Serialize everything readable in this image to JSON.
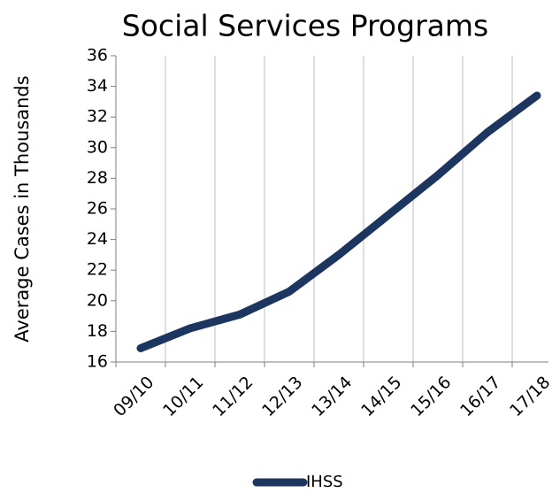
{
  "chart_data": {
    "type": "line",
    "title": "Social Services Programs",
    "y_label": "Average Cases  in Thousands",
    "categories": [
      "09/10",
      "10/11",
      "11/12",
      "12/13",
      "13/14",
      "14/15",
      "15/16",
      "16/17",
      "17/18"
    ],
    "series": [
      {
        "name": "IHSS",
        "color": "#1c3660",
        "values": [
          16.9,
          18.2,
          19.1,
          20.6,
          23.0,
          25.6,
          28.2,
          31.0,
          33.4
        ]
      }
    ],
    "ylim": [
      16,
      36
    ],
    "yticks": [
      16,
      18,
      20,
      22,
      24,
      26,
      28,
      30,
      32,
      34,
      36
    ],
    "grid": "x",
    "legend": "bottom"
  }
}
